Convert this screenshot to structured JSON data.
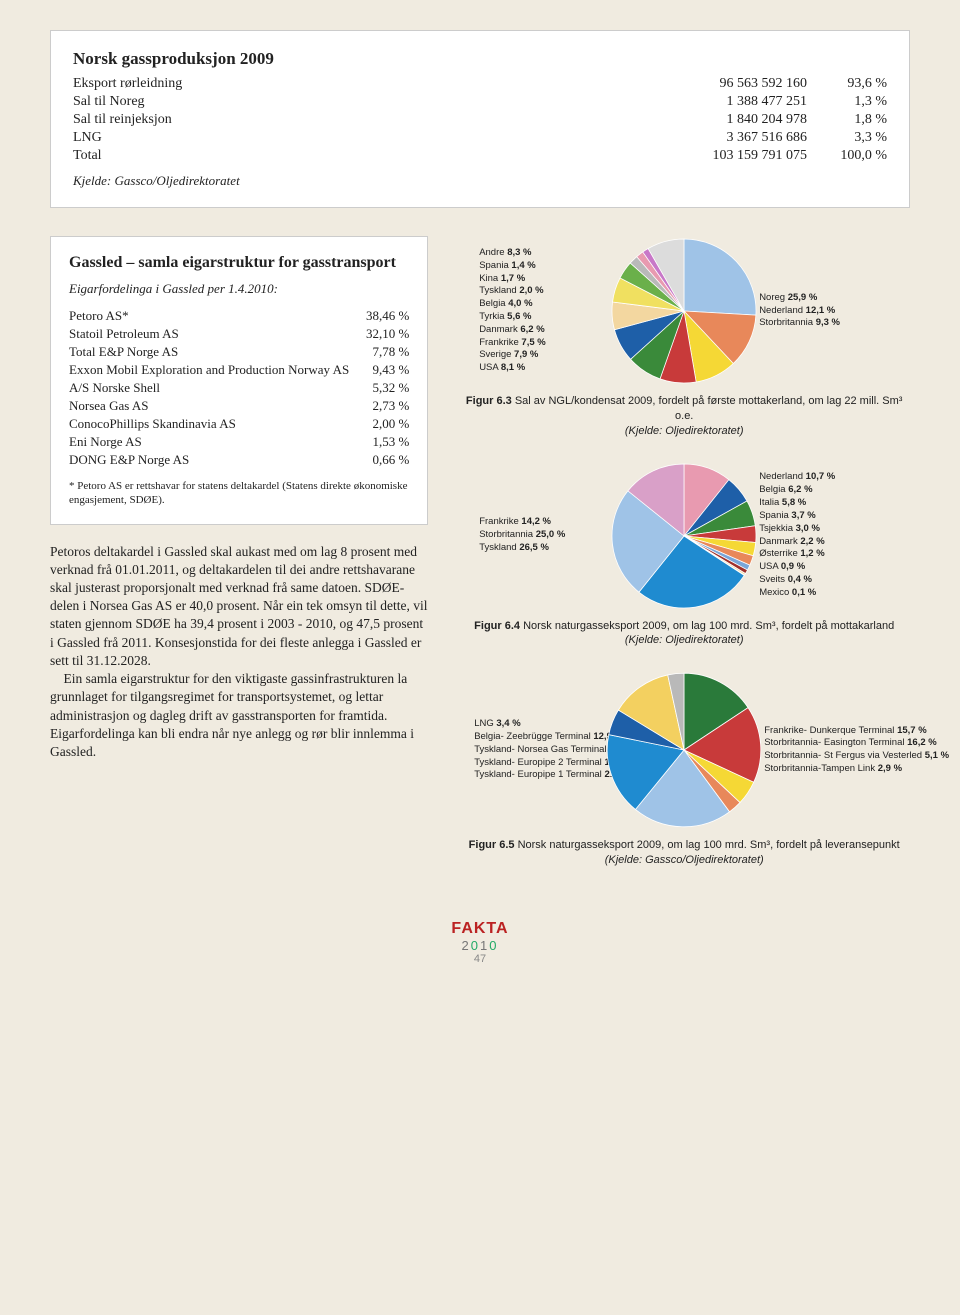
{
  "box1": {
    "title": "Norsk gassproduksjon 2009",
    "rows": [
      {
        "label": "Eksport rørleidning",
        "value": "96 563 592 160",
        "pct": "93,6 %"
      },
      {
        "label": "Sal til Noreg",
        "value": "1 388 477 251",
        "pct": "1,3 %"
      },
      {
        "label": "Sal til reinjeksjon",
        "value": "1 840 204 978",
        "pct": "1,8 %"
      },
      {
        "label": "LNG",
        "value": "3 367 516 686",
        "pct": "3,3 %"
      },
      {
        "label": "Total",
        "value": "103 159 791 075",
        "pct": "100,0 %"
      }
    ],
    "source": "Kjelde: Gassco/Oljedirektoratet"
  },
  "box2": {
    "title": "Gassled – samla eigarstruktur for gasstransport",
    "subtitle": "Eigarfordelinga i Gassled per 1.4.2010:",
    "owners": [
      {
        "name": "Petoro AS*",
        "pct": "38,46 %"
      },
      {
        "name": "Statoil Petroleum AS",
        "pct": "32,10 %"
      },
      {
        "name": "Total E&P Norge AS",
        "pct": "7,78 %"
      },
      {
        "name": "Exxon Mobil Exploration and Production Norway AS",
        "pct": "9,43 %"
      },
      {
        "name": "A/S Norske Shell",
        "pct": "5,32 %"
      },
      {
        "name": "Norsea Gas AS",
        "pct": "2,73 %"
      },
      {
        "name": "ConocoPhillips Skandinavia AS",
        "pct": "2,00 %"
      },
      {
        "name": "Eni Norge AS",
        "pct": "1,53 %"
      },
      {
        "name": "DONG E&P Norge AS",
        "pct": "0,66 %"
      }
    ],
    "footnote": "* Petoro AS er rettshavar for statens deltakardel (Statens direkte økonomiske engasjement, SDØE)."
  },
  "body": {
    "p1": "Petoros deltakardel i Gassled skal aukast med om lag 8 prosent med verknad frå 01.01.2011, og deltakardelen til dei andre rettshavarane skal justerast proporsjonalt med verknad frå same datoen. SDØE-delen i Norsea Gas AS er 40,0 prosent. Når ein tek omsyn til dette, vil staten gjennom SDØE ha 39,4 prosent i 2003 - 2010, og 47,5 prosent i Gassled frå 2011. Konsesjonstida for dei fleste anlegga i Gassled er sett til 31.12.2028.",
    "p2": "Ein samla eigarstruktur for den viktigaste gassinfrastrukturen la grunnlaget for tilgangsregimet for transportsystemet, og lettar administrasjon og dagleg drift av gasstransporten for framtida. Eigarfordelinga kan bli endra når nye anlegg og rør blir innlemma i Gassled."
  },
  "chart63": {
    "type": "pie",
    "left_labels": [
      {
        "t": "Andre",
        "v": "8,3 %"
      },
      {
        "t": "Spania",
        "v": "1,4 %"
      },
      {
        "t": "Kina",
        "v": "1,7 %"
      },
      {
        "t": "Tyskland",
        "v": "2,0 %"
      },
      {
        "t": "Belgia",
        "v": "4,0 %"
      },
      {
        "t": "Tyrkia",
        "v": "5,6 %"
      },
      {
        "t": "Danmark",
        "v": "6,2 %"
      },
      {
        "t": "Frankrike",
        "v": "7,5 %"
      },
      {
        "t": "Sverige",
        "v": "7,9 %"
      },
      {
        "t": "USA",
        "v": "8,1 %"
      }
    ],
    "right_labels": [
      {
        "t": "Noreg",
        "v": "25,9 %"
      },
      {
        "t": "Nederland",
        "v": "12,1 %"
      },
      {
        "t": "Storbritannia",
        "v": "9,3 %"
      }
    ],
    "slices": [
      {
        "v": 25.9,
        "c": "#9fc3e7"
      },
      {
        "v": 12.1,
        "c": "#e8885a"
      },
      {
        "v": 9.3,
        "c": "#f5d835"
      },
      {
        "v": 8.1,
        "c": "#c83a3a"
      },
      {
        "v": 7.9,
        "c": "#3a8a3a"
      },
      {
        "v": 7.5,
        "c": "#1e5fa8"
      },
      {
        "v": 6.2,
        "c": "#f3d7a0"
      },
      {
        "v": 5.6,
        "c": "#f0e060"
      },
      {
        "v": 4.0,
        "c": "#6ab04a"
      },
      {
        "v": 2.0,
        "c": "#b9b9b9"
      },
      {
        "v": 1.7,
        "c": "#e89ab0"
      },
      {
        "v": 1.4,
        "c": "#c878c8"
      },
      {
        "v": 8.3,
        "c": "#dcdcdc"
      }
    ],
    "caption_title": "Figur 6.3",
    "caption_text": "Sal av NGL/kondensat 2009, fordelt på første mottakerland, om lag 22 mill. Sm³ o.e.",
    "caption_source": "(Kjelde: Oljedirektoratet)"
  },
  "chart64": {
    "type": "pie",
    "left_labels": [
      {
        "t": "Frankrike",
        "v": "14,2 %"
      },
      {
        "t": "Storbritannia",
        "v": "25,0 %"
      },
      {
        "t": "Tyskland",
        "v": "26,5 %"
      }
    ],
    "right_labels": [
      {
        "t": "Nederland",
        "v": "10,7 %"
      },
      {
        "t": "Belgia",
        "v": "6,2 %"
      },
      {
        "t": "Italia",
        "v": "5,8 %"
      },
      {
        "t": "Spania",
        "v": "3,7 %"
      },
      {
        "t": "Tsjekkia",
        "v": "3,0 %"
      },
      {
        "t": "Danmark",
        "v": "2,2 %"
      },
      {
        "t": "Østerrike",
        "v": "1,2 %"
      },
      {
        "t": "USA",
        "v": "0,9 %"
      },
      {
        "t": "Sveits",
        "v": "0,4 %"
      },
      {
        "t": "Mexico",
        "v": "0,1 %"
      }
    ],
    "slices": [
      {
        "v": 10.7,
        "c": "#e89ab0"
      },
      {
        "v": 6.2,
        "c": "#1e5fa8"
      },
      {
        "v": 5.8,
        "c": "#3a8a3a"
      },
      {
        "v": 3.7,
        "c": "#c83a3a"
      },
      {
        "v": 3.0,
        "c": "#f5d835"
      },
      {
        "v": 2.2,
        "c": "#e8885a"
      },
      {
        "v": 1.2,
        "c": "#7aa6d8"
      },
      {
        "v": 0.9,
        "c": "#a0302a"
      },
      {
        "v": 0.4,
        "c": "#f3d7a0"
      },
      {
        "v": 0.1,
        "c": "#6ab04a"
      },
      {
        "v": 26.5,
        "c": "#1f8bd0"
      },
      {
        "v": 25.0,
        "c": "#9fc3e7"
      },
      {
        "v": 14.2,
        "c": "#d9a0c8"
      }
    ],
    "caption_title": "Figur 6.4",
    "caption_text": "Norsk naturgasseksport 2009, om lag 100 mrd. Sm³, fordelt på mottakarland",
    "caption_source": "(Kjelde: Oljedirektoratet)"
  },
  "chart65": {
    "type": "pie",
    "left_labels": [
      {
        "t": "LNG",
        "v": "3,4 %"
      },
      {
        "t": "Belgia- Zeebrügge Terminal",
        "v": "12,9 %"
      },
      {
        "t": "Tyskland- Norsea Gas Terminal",
        "v": "5,5 %"
      },
      {
        "t": "Tyskland- Europipe 2 Terminal",
        "v": "17,3 %"
      },
      {
        "t": "Tyskland- Europipe 1 Terminal",
        "v": "21,0 %"
      }
    ],
    "right_labels": [
      {
        "t": "Frankrike- Dunkerque Terminal",
        "v": "15,7 %"
      },
      {
        "t": "Storbritannia- Easington Terminal",
        "v": "16,2 %"
      },
      {
        "t": "Storbritannia- St Fergus via Vesterled",
        "v": "5,1 %"
      },
      {
        "t": "Storbritannia-Tampen Link",
        "v": "2,9 %"
      }
    ],
    "slices": [
      {
        "v": 15.7,
        "c": "#2a7a3a"
      },
      {
        "v": 16.2,
        "c": "#c83a3a"
      },
      {
        "v": 5.1,
        "c": "#f5d835"
      },
      {
        "v": 2.9,
        "c": "#e8885a"
      },
      {
        "v": 21.0,
        "c": "#9fc3e7"
      },
      {
        "v": 17.3,
        "c": "#1f8bd0"
      },
      {
        "v": 5.5,
        "c": "#1e5fa8"
      },
      {
        "v": 12.9,
        "c": "#f3d060"
      },
      {
        "v": 3.4,
        "c": "#b9b9b9"
      }
    ],
    "caption_title": "Figur 6.5",
    "caption_text": "Norsk naturgasseksport 2009, om lag 100 mrd. Sm³, fordelt på leveransepunkt",
    "caption_source": "(Kjelde: Gassco/Oljedirektoratet)"
  },
  "footer": {
    "brand": "FAKTA",
    "year": "2010",
    "page": "47"
  }
}
